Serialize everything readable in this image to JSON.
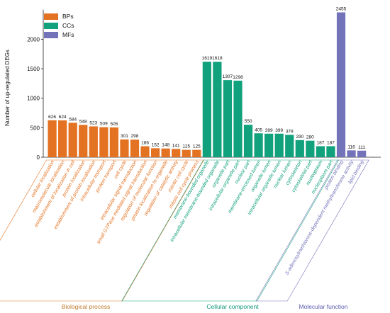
{
  "chart_data": {
    "type": "bar",
    "ylabel": "Number of up-regulated DEGs",
    "ylim": [
      0,
      2500
    ],
    "yticks": [
      "0",
      "500",
      "1000",
      "1500",
      "2000"
    ],
    "grid": false,
    "legend_position": "top-left",
    "series": [
      {
        "name": "BPs",
        "group_label": "Biological process",
        "color": "#E37222",
        "categories": [
          "cellular localization",
          "macromolecule localization",
          "establishment of localization in cell",
          "protein localization",
          "establishment of protein localization",
          "intracellular transport",
          "protein transport",
          "cell cycle",
          "intracellular signal transduction",
          "small GTPase mediated signal transduction",
          "regulation of molecular function",
          "protein localization to organelle",
          "regulation of catalytic activity",
          "mitotic cell cycle",
          "mitotic cell cycle process"
        ],
        "values": [
          626,
          624,
          584,
          548,
          523,
          509,
          505,
          301,
          298,
          186,
          152,
          148,
          141,
          125,
          125
        ],
        "value_labels": [
          "626",
          "624",
          "584",
          "548",
          "523",
          "509",
          "505",
          "301",
          "298",
          "186",
          "152",
          "148",
          "141",
          "125",
          "125"
        ]
      },
      {
        "name": "CCs",
        "group_label": "Cellular component",
        "color": "#11A17C",
        "categories": [
          "membrane-bounded organelle",
          "intracellular membrane-bounded organelle",
          "organelle part",
          "intracellular organelle part",
          "nuclear part",
          "membrane-enclosed lumen",
          "organelle lumen",
          "intracellular organelle lumen",
          "nuclear lumen",
          "cytoskeleton",
          "cytoskeletal part",
          "nucleoplasm",
          "nucleoplasm part"
        ],
        "values": [
          1619,
          1618,
          1307,
          1298,
          550,
          405,
          399,
          399,
          379,
          290,
          280,
          187,
          187
        ],
        "value_labels": [
          "1619",
          "1618",
          "1307",
          "1298",
          "550",
          "405",
          "399",
          "399",
          "379",
          "290",
          "280",
          "187",
          "187"
        ]
      },
      {
        "name": "MFs",
        "group_label": "Molecular function",
        "color": "#7373BA",
        "categories": [
          "protein binding",
          "S-adenosylmethionine-dependent methyltransferase activity",
          "lipid binding"
        ],
        "values": [
          2455,
          116,
          111
        ],
        "value_labels": [
          "2455",
          "116",
          "111"
        ]
      }
    ]
  }
}
